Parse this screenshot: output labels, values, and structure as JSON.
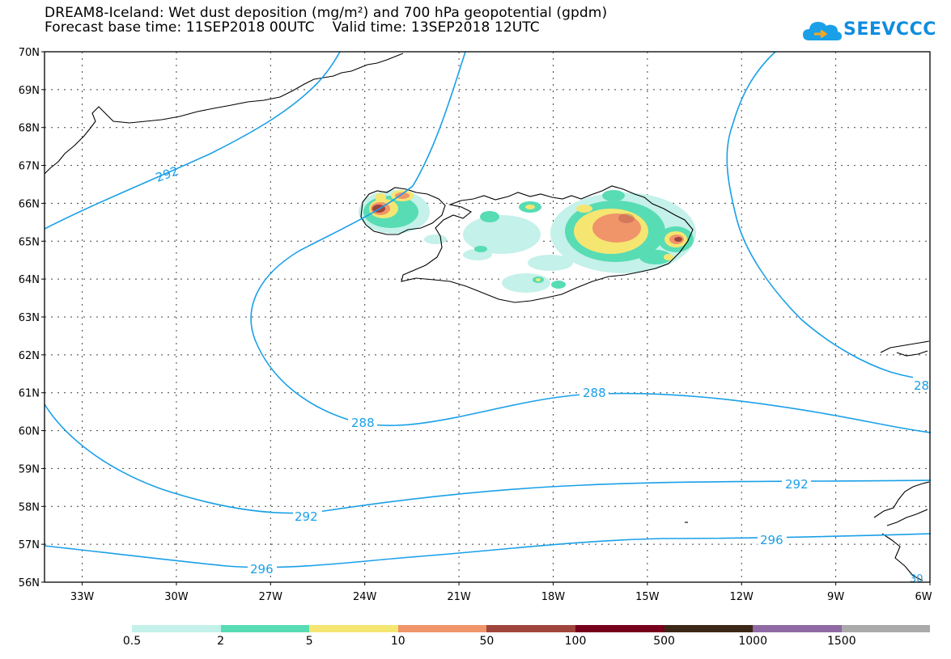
{
  "title": {
    "line1": "DREAM8-Iceland: Wet dust deposition (mg/m²) and 700 hPa geopotential (gpdm)",
    "line2": "Forecast base time: 11SEP2018 00UTC    Valid time: 13SEP2018 12UTC"
  },
  "logo": {
    "text": "SEEVCCC",
    "color": "#0f8de0"
  },
  "map": {
    "lat_labels": [
      "70N",
      "69N",
      "68N",
      "67N",
      "66N",
      "65N",
      "64N",
      "63N",
      "62N",
      "61N",
      "60N",
      "59N",
      "58N",
      "57N",
      "56N"
    ],
    "lon_labels": [
      "33W",
      "30W",
      "27W",
      "24W",
      "21W",
      "18W",
      "15W",
      "12W",
      "9W",
      "6W"
    ],
    "contour_color": "#1aa0e8",
    "contour_labels": [
      "292",
      "288",
      "288",
      "292",
      "292",
      "296",
      "296",
      "28",
      "30"
    ]
  },
  "colorbar": {
    "colors": [
      "#c4f1e9",
      "#57dcb4",
      "#f5e672",
      "#f0946a",
      "#a0453c",
      "#76001c",
      "#3c2616",
      "#8f6aa4",
      "#aaaaaa"
    ],
    "labels": [
      "0.5",
      "2",
      "5",
      "10",
      "50",
      "100",
      "500",
      "1000",
      "1500"
    ]
  }
}
